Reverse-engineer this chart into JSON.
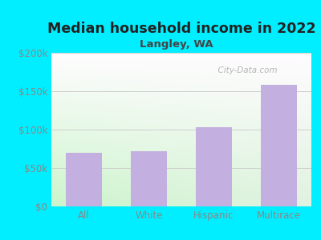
{
  "title": "Median household income in 2022",
  "subtitle": "Langley, WA",
  "categories": [
    "All",
    "White",
    "Hispanic",
    "Multirace"
  ],
  "values": [
    70000,
    72000,
    103000,
    158000
  ],
  "bar_color": "#c4b0e0",
  "bar_edge_color": "#b8a8d8",
  "ylim": [
    0,
    200000
  ],
  "yticks": [
    0,
    50000,
    100000,
    150000,
    200000
  ],
  "ytick_labels": [
    "$0",
    "$50k",
    "$100k",
    "$150k",
    "$200k"
  ],
  "title_fontsize": 12.5,
  "subtitle_fontsize": 9.5,
  "tick_fontsize": 8.5,
  "background_outer": "#00eeff",
  "watermark": "  City-Data.com",
  "title_color": "#222222",
  "subtitle_color": "#444444",
  "tick_color": "#888888"
}
